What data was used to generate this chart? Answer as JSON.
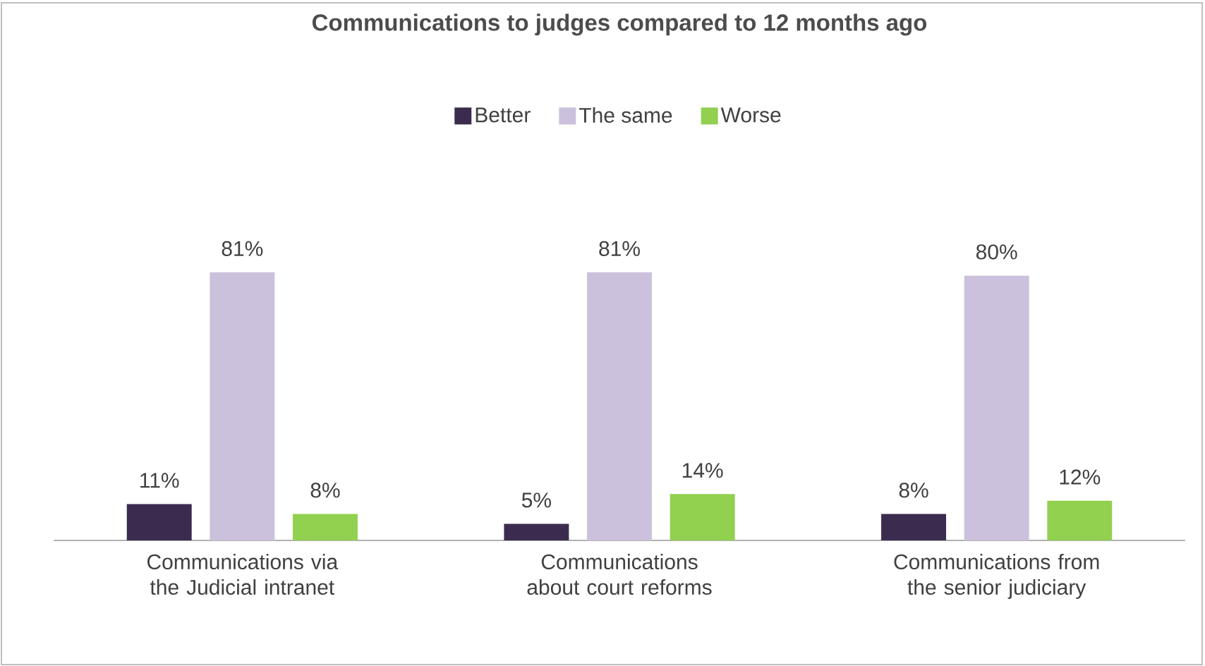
{
  "chart_data": {
    "type": "bar",
    "title": "Communications to judges compared to 12 months ago",
    "categories": [
      "Communications via the Judicial intranet",
      "Communications about court reforms",
      "Communications from the senior judiciary"
    ],
    "series": [
      {
        "name": "Better",
        "color": "#3b2c4f",
        "values": [
          11,
          5,
          8
        ],
        "value_labels": [
          "11%",
          "5%",
          "8%"
        ]
      },
      {
        "name": "The same",
        "color": "#ccc1dc",
        "values": [
          81,
          81,
          80
        ],
        "value_labels": [
          "81%",
          "81%",
          "80%"
        ]
      },
      {
        "name": "Worse",
        "color": "#92d050",
        "values": [
          8,
          14,
          12
        ],
        "value_labels": [
          "8%",
          "14%",
          "12%"
        ]
      }
    ],
    "legend": "top"
  }
}
